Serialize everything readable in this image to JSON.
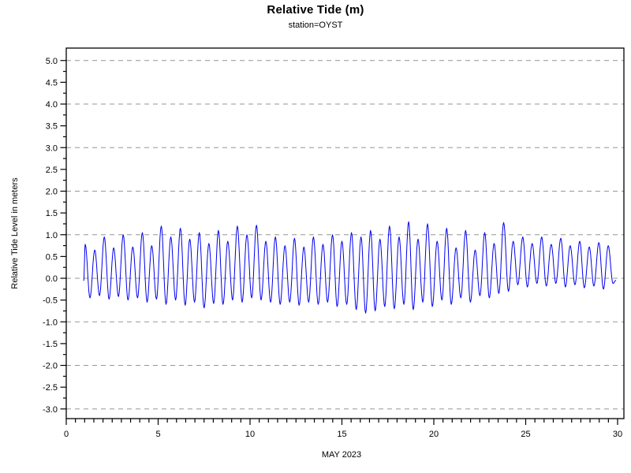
{
  "header": {
    "title": "Relative Tide (m)",
    "subtitle": "station=OYST"
  },
  "axes": {
    "y_title": "Relative Tide Level in meters",
    "x_title": "MAY 2023"
  },
  "colors": {
    "line": "#0000ee",
    "grid": "#969696",
    "frame": "#000000",
    "background": "#ffffff"
  },
  "chart_data": {
    "type": "line",
    "title": "Relative Tide (m)",
    "subtitle": "station=OYST",
    "xlabel": "MAY 2023",
    "ylabel": "Relative Tide Level in meters",
    "x_unit": "day of May 2023",
    "y_unit": "meters",
    "xlim": [
      0,
      30.3
    ],
    "ylim": [
      -3.25,
      5.25
    ],
    "grid": "dashed horizontal at integer values",
    "legend": "none",
    "line_color": "#0000ee",
    "grid_color": "#969696",
    "y_ticks": [
      [
        5.0,
        "5.0"
      ],
      [
        4.5,
        "4.5"
      ],
      [
        4.0,
        "4.0"
      ],
      [
        3.5,
        "3.5"
      ],
      [
        3.0,
        "3.0"
      ],
      [
        2.5,
        "2.5"
      ],
      [
        2.0,
        "2.0"
      ],
      [
        1.5,
        "1.5"
      ],
      [
        1.0,
        "1.0"
      ],
      [
        0.5,
        "0.5"
      ],
      [
        0.0,
        "0.0"
      ],
      [
        -0.5,
        "-0.5"
      ],
      [
        -1.0,
        "-1.0"
      ],
      [
        -1.5,
        "-1.5"
      ],
      [
        -2.0,
        "-2.0"
      ],
      [
        -2.5,
        "-2.5"
      ],
      [
        -3.0,
        "-3.0"
      ]
    ],
    "y_minor_step": 0.25,
    "x_ticks": [
      [
        0,
        "0"
      ],
      [
        5,
        "5"
      ],
      [
        10,
        "10"
      ],
      [
        15,
        "15"
      ],
      [
        20,
        "20"
      ],
      [
        25,
        "25"
      ],
      [
        30,
        "30"
      ]
    ],
    "x_minor_step": 0.5,
    "gridlines_y": [
      5,
      4,
      3,
      2,
      1,
      0,
      -1,
      -2,
      -3
    ],
    "series": [
      {
        "name": "relative tide at station OYST",
        "representation": "tidal extrema (alternating high/low) as [day_of_month, meters]; curve is semidiurnal (~1.93 cycles/day) interpolated smoothly between extrema",
        "extrema": [
          [
            0.95,
            -0.05
          ],
          [
            1.03,
            0.78
          ],
          [
            1.29,
            -0.45
          ],
          [
            1.55,
            0.65
          ],
          [
            1.81,
            -0.4
          ],
          [
            2.07,
            0.95
          ],
          [
            2.33,
            -0.48
          ],
          [
            2.58,
            0.7
          ],
          [
            2.84,
            -0.42
          ],
          [
            3.1,
            1.0
          ],
          [
            3.36,
            -0.5
          ],
          [
            3.62,
            0.72
          ],
          [
            3.88,
            -0.45
          ],
          [
            4.14,
            1.05
          ],
          [
            4.4,
            -0.55
          ],
          [
            4.65,
            0.75
          ],
          [
            4.91,
            -0.48
          ],
          [
            5.17,
            1.2
          ],
          [
            5.43,
            -0.6
          ],
          [
            5.69,
            0.95
          ],
          [
            5.95,
            -0.5
          ],
          [
            6.21,
            1.15
          ],
          [
            6.47,
            -0.62
          ],
          [
            6.72,
            0.9
          ],
          [
            6.98,
            -0.55
          ],
          [
            7.24,
            1.05
          ],
          [
            7.5,
            -0.68
          ],
          [
            7.76,
            0.8
          ],
          [
            8.02,
            -0.58
          ],
          [
            8.28,
            1.1
          ],
          [
            8.53,
            -0.6
          ],
          [
            8.79,
            0.85
          ],
          [
            9.05,
            -0.5
          ],
          [
            9.31,
            1.2
          ],
          [
            9.57,
            -0.55
          ],
          [
            9.83,
            1.0
          ],
          [
            10.09,
            -0.45
          ],
          [
            10.35,
            1.22
          ],
          [
            10.6,
            -0.5
          ],
          [
            10.86,
            0.85
          ],
          [
            11.12,
            -0.55
          ],
          [
            11.38,
            0.95
          ],
          [
            11.64,
            -0.6
          ],
          [
            11.9,
            0.75
          ],
          [
            12.16,
            -0.55
          ],
          [
            12.42,
            0.92
          ],
          [
            12.67,
            -0.62
          ],
          [
            12.93,
            0.72
          ],
          [
            13.19,
            -0.55
          ],
          [
            13.45,
            0.95
          ],
          [
            13.71,
            -0.6
          ],
          [
            13.97,
            0.78
          ],
          [
            14.22,
            -0.55
          ],
          [
            14.49,
            1.0
          ],
          [
            14.74,
            -0.65
          ],
          [
            15.0,
            0.85
          ],
          [
            15.26,
            -0.6
          ],
          [
            15.52,
            1.05
          ],
          [
            15.78,
            -0.72
          ],
          [
            16.04,
            0.95
          ],
          [
            16.29,
            -0.8
          ],
          [
            16.56,
            1.1
          ],
          [
            16.81,
            -0.75
          ],
          [
            17.07,
            0.9
          ],
          [
            17.33,
            -0.65
          ],
          [
            17.59,
            1.2
          ],
          [
            17.85,
            -0.7
          ],
          [
            18.11,
            0.95
          ],
          [
            18.37,
            -0.6
          ],
          [
            18.63,
            1.3
          ],
          [
            18.88,
            -0.72
          ],
          [
            19.14,
            0.9
          ],
          [
            19.4,
            -0.55
          ],
          [
            19.66,
            1.25
          ],
          [
            19.92,
            -0.65
          ],
          [
            20.18,
            0.85
          ],
          [
            20.44,
            -0.5
          ],
          [
            20.7,
            1.15
          ],
          [
            20.95,
            -0.6
          ],
          [
            21.21,
            0.7
          ],
          [
            21.47,
            -0.45
          ],
          [
            21.73,
            1.1
          ],
          [
            21.99,
            -0.55
          ],
          [
            22.25,
            0.65
          ],
          [
            22.51,
            -0.4
          ],
          [
            22.77,
            1.05
          ],
          [
            23.02,
            -0.45
          ],
          [
            23.28,
            0.8
          ],
          [
            23.54,
            -0.35
          ],
          [
            23.8,
            1.28
          ],
          [
            24.06,
            -0.3
          ],
          [
            24.32,
            0.85
          ],
          [
            24.57,
            -0.15
          ],
          [
            24.84,
            0.95
          ],
          [
            25.09,
            -0.2
          ],
          [
            25.35,
            0.8
          ],
          [
            25.61,
            -0.12
          ],
          [
            25.87,
            0.95
          ],
          [
            26.12,
            -0.18
          ],
          [
            26.39,
            0.78
          ],
          [
            26.64,
            -0.12
          ],
          [
            26.91,
            0.92
          ],
          [
            27.16,
            -0.2
          ],
          [
            27.42,
            0.75
          ],
          [
            27.68,
            -0.15
          ],
          [
            27.94,
            0.85
          ],
          [
            28.19,
            -0.22
          ],
          [
            28.46,
            0.72
          ],
          [
            28.71,
            -0.18
          ],
          [
            28.98,
            0.82
          ],
          [
            29.23,
            -0.25
          ],
          [
            29.49,
            0.75
          ],
          [
            29.75,
            -0.12
          ],
          [
            29.9,
            -0.05
          ]
        ]
      }
    ]
  }
}
